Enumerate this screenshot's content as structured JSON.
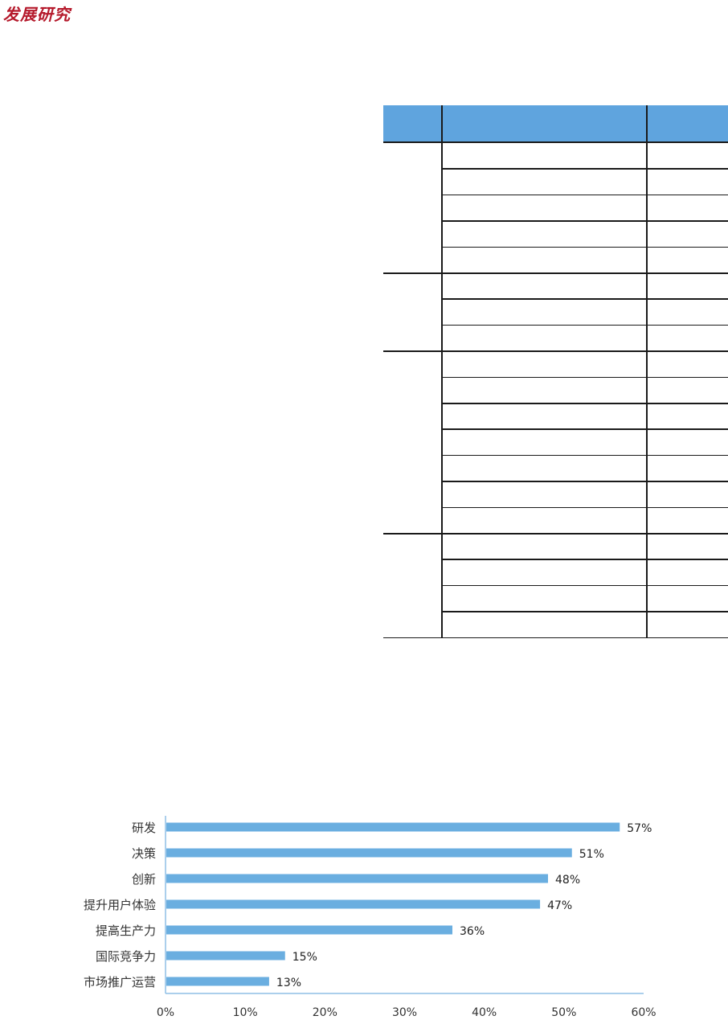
{
  "header": {
    "logo_text": "发展研究",
    "logo_color": "#b5192b"
  },
  "table": {
    "header_color": "#5fa4de",
    "groups": [
      {
        "rows": 5
      },
      {
        "rows": 3
      },
      {
        "rows": 7
      },
      {
        "rows": 4
      }
    ]
  },
  "chart_data": {
    "type": "bar",
    "orientation": "horizontal",
    "categories": [
      "研发",
      "决策",
      "创新",
      "提升用户体验",
      "提高生产力",
      "国际竞争力",
      "市场推广运营"
    ],
    "values": [
      57,
      51,
      48,
      47,
      36,
      15,
      13
    ],
    "data_labels": [
      "57%",
      "51%",
      "48%",
      "47%",
      "36%",
      "15%",
      "13%"
    ],
    "xlim": [
      0,
      60
    ],
    "xticks": [
      0,
      10,
      20,
      30,
      40,
      50,
      60
    ],
    "xtick_labels": [
      "0%",
      "10%",
      "20%",
      "30%",
      "40%",
      "50%",
      "60%"
    ],
    "bar_color": "#6aaee0",
    "axis_color": "#8fbfe6",
    "grid": false
  }
}
